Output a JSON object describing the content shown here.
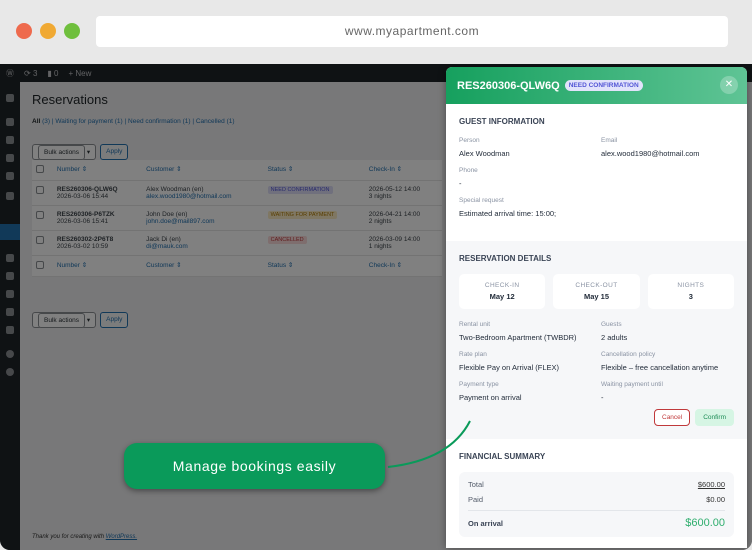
{
  "browser": {
    "url": "www.myapartment.com",
    "colors": {
      "close": "#ee6a4d",
      "minimize": "#f0a933",
      "maximize": "#6fbf3d"
    }
  },
  "adminbar": {
    "updates": "3",
    "comments": "0",
    "new": "New"
  },
  "page": {
    "title": "Reservations",
    "filters": [
      {
        "label": "All",
        "count": "(3)"
      },
      {
        "label": "Waiting for payment",
        "count": "(1)"
      },
      {
        "label": "Need confirmation",
        "count": "(1)"
      },
      {
        "label": "Cancelled",
        "count": "(1)"
      }
    ],
    "bulk_actions": "Bulk actions",
    "apply": "Apply",
    "columns": [
      "Number",
      "Customer",
      "Status",
      "Check-In"
    ],
    "rows": [
      {
        "number": "RES260306-QLW6Q",
        "created": "2026-03-06 15:44",
        "customer": "Alex Woodman (en)",
        "email": "alex.wood1980@hotmail.com",
        "status": "NEED CONFIRMATION",
        "status_bg": "#dfe0fa",
        "status_color": "#5255d6",
        "checkin": "2026-05-12 14:00",
        "nights": "3 nights"
      },
      {
        "number": "RES260306-P6TZK",
        "created": "2026-03-06 15:41",
        "customer": "John Doe (en)",
        "email": "john.doe@mail897.com",
        "status": "WAITING FOR PAYMENT",
        "status_bg": "#fdeec6",
        "status_color": "#b07a00",
        "checkin": "2026-04-21 14:00",
        "nights": "2 nights"
      },
      {
        "number": "RES260302-2P6T8",
        "created": "2026-03-02 10:59",
        "customer": "Jack Di (en)",
        "email": "di@mauk.com",
        "status": "CANCELLED",
        "status_bg": "#fbdcdc",
        "status_color": "#c0393b",
        "checkin": "2026-03-09 14:00",
        "nights": "1 nights"
      }
    ],
    "footer": "Thank you for creating with",
    "footer_link": "WordPress."
  },
  "panel": {
    "code": "RES260306-QLW6Q",
    "badge": "NEED CONFIRMATION",
    "guest": {
      "title": "GUEST INFORMATION",
      "person_label": "Person",
      "person": "Alex Woodman",
      "email_label": "Email",
      "email": "alex.wood1980@hotmail.com",
      "phone_label": "Phone",
      "phone": "-",
      "request_label": "Special request",
      "request": "Estimated arrival time: 15:00;"
    },
    "details": {
      "title": "RESERVATION DETAILS",
      "checkin_label": "CHECK-IN",
      "checkin": "May 12",
      "checkout_label": "CHECK-OUT",
      "checkout": "May 15",
      "nights_label": "NIGHTS",
      "nights": "3",
      "unit_label": "Rental unit",
      "unit": "Two-Bedroom Apartment (TWBDR)",
      "guests_label": "Guests",
      "guests": "2 adults",
      "rate_label": "Rate plan",
      "rate": "Flexible Pay on Arrival (FLEX)",
      "policy_label": "Cancellation policy",
      "policy": "Flexible – free cancellation anytime",
      "payment_label": "Payment type",
      "payment": "Payment on arrival",
      "waiting_label": "Waiting payment until",
      "waiting": "-",
      "cancel": "Cancel",
      "confirm": "Confirm"
    },
    "financial": {
      "title": "FINANCIAL SUMMARY",
      "total_label": "Total",
      "total": "$600.00",
      "paid_label": "Paid",
      "paid": "$0.00",
      "arrival_label": "On arrival",
      "arrival": "$600.00"
    }
  },
  "callout": "Manage bookings easily",
  "accent": "#0a9a5a"
}
